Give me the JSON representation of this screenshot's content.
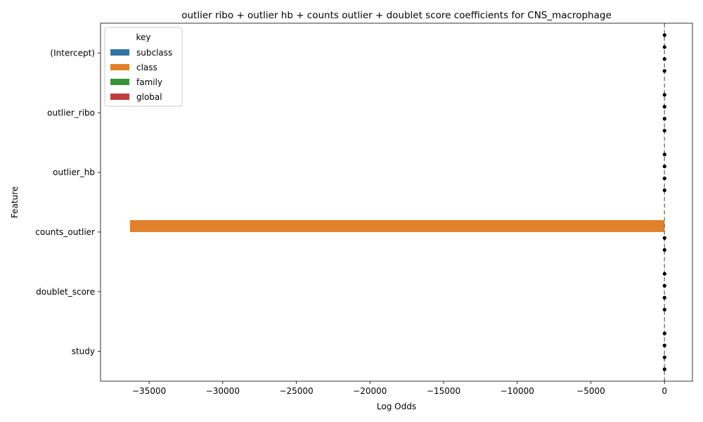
{
  "chart_data": {
    "type": "bar",
    "orientation": "horizontal",
    "title": "outlier ribo + outlier hb + counts outlier + doublet score coefficients for CNS_macrophage",
    "xlabel": "Log Odds",
    "ylabel": "Feature",
    "categories": [
      "(Intercept)",
      "outlier_ribo",
      "outlier_hb",
      "counts_outlier",
      "doublet_score",
      "study"
    ],
    "xlim": [
      -38300,
      1900
    ],
    "xticks": [
      -35000,
      -30000,
      -25000,
      -20000,
      -15000,
      -10000,
      -5000,
      0
    ],
    "xtick_labels": [
      "−35000",
      "−30000",
      "−25000",
      "−20000",
      "−15000",
      "−10000",
      "−5000",
      "0"
    ],
    "reference_line": {
      "x": 0,
      "style": "dashed",
      "color": "#7f7f7f"
    },
    "legend": {
      "title": "key",
      "placement": "upper-left",
      "entries": [
        {
          "name": "subclass",
          "color": "#3274a1"
        },
        {
          "name": "class",
          "color": "#e1812c"
        },
        {
          "name": "family",
          "color": "#3a923a"
        },
        {
          "name": "global",
          "color": "#c03d3e"
        }
      ]
    },
    "series": [
      {
        "name": "subclass",
        "color": "#3274a1",
        "values": [
          5,
          3,
          4,
          0,
          8,
          3
        ],
        "points": [
          true,
          true,
          true,
          false,
          true,
          true
        ]
      },
      {
        "name": "class",
        "color": "#e1812c",
        "values": [
          4,
          2,
          3,
          -36300,
          2,
          2
        ],
        "points": [
          true,
          true,
          true,
          false,
          true,
          true
        ]
      },
      {
        "name": "family",
        "color": "#3a923a",
        "values": [
          3,
          4,
          2,
          6,
          3,
          4
        ],
        "points": [
          true,
          true,
          true,
          true,
          true,
          true
        ]
      },
      {
        "name": "global",
        "color": "#c03d3e",
        "values": [
          2,
          3,
          4,
          5,
          4,
          3
        ],
        "points": [
          true,
          true,
          true,
          true,
          true,
          true
        ]
      }
    ]
  }
}
